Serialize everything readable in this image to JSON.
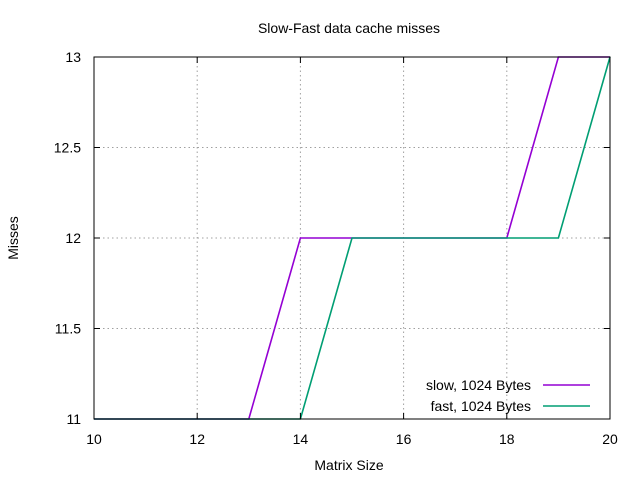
{
  "chart_data": {
    "type": "line",
    "title": "Slow-Fast data cache misses",
    "xlabel": "Matrix Size",
    "ylabel": "Misses",
    "xlim": [
      10,
      20
    ],
    "ylim": [
      11,
      13
    ],
    "xticks": [
      10,
      12,
      14,
      16,
      18,
      20
    ],
    "yticks": [
      11,
      11.5,
      12,
      12.5,
      13
    ],
    "xtick_labels": [
      "10",
      "12",
      "14",
      "16",
      "18",
      "20"
    ],
    "ytick_labels": [
      "11",
      "11.5",
      "12",
      "12.5",
      "13"
    ],
    "grid": true,
    "legend_position": "bottom-right",
    "x": [
      10,
      11,
      12,
      13,
      14,
      15,
      16,
      17,
      18,
      19,
      20
    ],
    "series": [
      {
        "name": "slow, 1024 Bytes",
        "color": "#9400d3",
        "values": [
          11,
          11,
          11,
          11,
          12,
          12,
          12,
          12,
          12,
          13,
          13
        ]
      },
      {
        "name": "fast, 1024 Bytes",
        "color": "#009e73",
        "values": [
          11,
          11,
          11,
          11,
          11,
          12,
          12,
          12,
          12,
          12,
          13
        ]
      }
    ]
  }
}
